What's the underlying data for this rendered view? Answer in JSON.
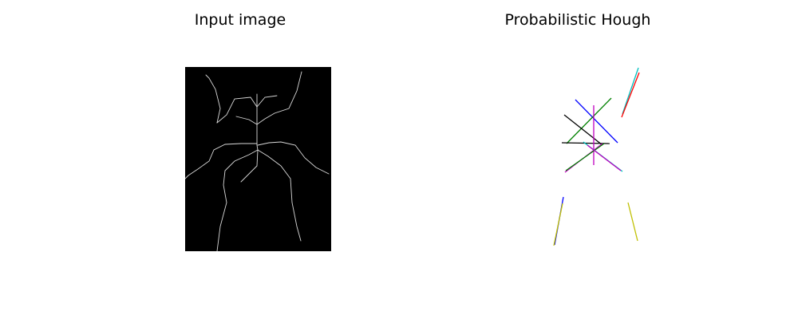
{
  "figure": {
    "left_title": "Input image",
    "right_title": "Probabilistic Hough"
  },
  "colors": {
    "background": "#ffffff",
    "image_background": "#000000",
    "skeleton": "#d9d9d9",
    "hough_palette": [
      "#0000ff",
      "#008000",
      "#ff0000",
      "#00bfbf",
      "#bf00bf",
      "#bfbf00",
      "#000000"
    ]
  }
}
